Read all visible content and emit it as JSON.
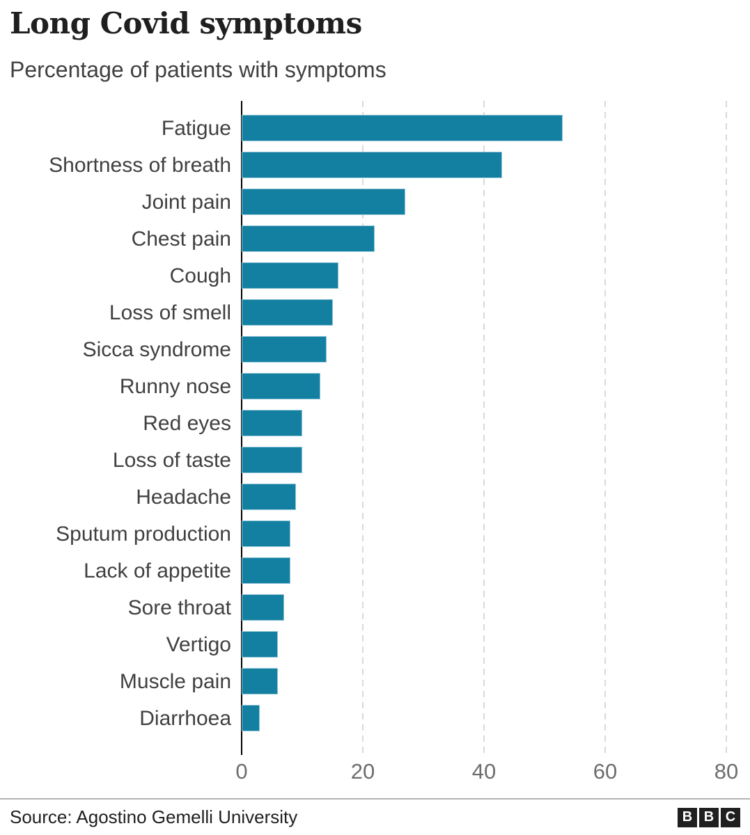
{
  "header": {
    "title": "Long Covid symptoms",
    "subtitle": "Percentage of patients with symptoms"
  },
  "chart_data": {
    "type": "bar",
    "orientation": "horizontal",
    "title": "Long Covid symptoms",
    "subtitle": "Percentage of patients with symptoms",
    "categories": [
      "Fatigue",
      "Shortness of breath",
      "Joint pain",
      "Chest pain",
      "Cough",
      "Loss of smell",
      "Sicca syndrome",
      "Runny nose",
      "Red eyes",
      "Loss of taste",
      "Headache",
      "Sputum production",
      "Lack of appetite",
      "Sore throat",
      "Vertigo",
      "Muscle pain",
      "Diarrhoea"
    ],
    "values": [
      53,
      43,
      27,
      22,
      16,
      15,
      14,
      13,
      10,
      10,
      9,
      8,
      8,
      7,
      6,
      6,
      3
    ],
    "xlabel": "",
    "ylabel": "",
    "xlim": [
      0,
      80
    ],
    "xticks": [
      0,
      20,
      40,
      60,
      80
    ],
    "grid": "dashed-vertical-gridlines",
    "legend": "none",
    "bar_color": "#1380A1"
  },
  "footer": {
    "source": "Source: Agostino Gemelli University",
    "logo_letters": [
      "B",
      "B",
      "C"
    ]
  },
  "colors": {
    "bar": "#1380A1",
    "bar_edge": "#8fc3d6",
    "title_text": "#1f1f1f",
    "subtitle_text": "#404040",
    "label_text": "#404040",
    "tick_text": "#6d6d6d",
    "gridline": "#d9d9d9",
    "axis_line": "#000000",
    "divider": "#b3b3b3",
    "logo_bg": "#1f1f1f",
    "background": "#ffffff"
  }
}
